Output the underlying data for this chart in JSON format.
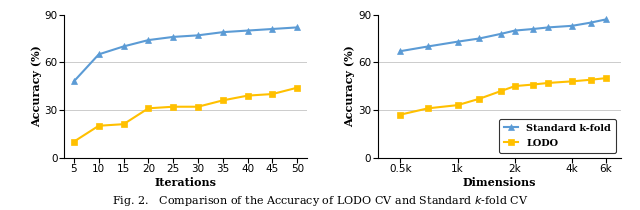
{
  "left": {
    "xlabel": "Iterations",
    "ylabel": "Accuracy (%)",
    "ylim": [
      0,
      90
    ],
    "yticks": [
      0,
      30,
      60,
      90
    ],
    "xticks": [
      5,
      10,
      15,
      20,
      25,
      30,
      35,
      40,
      45,
      50
    ],
    "xlim": [
      3,
      52
    ],
    "standard_x": [
      5,
      10,
      15,
      20,
      25,
      30,
      35,
      40,
      45,
      50
    ],
    "standard_y": [
      48,
      65,
      70,
      74,
      76,
      77,
      79,
      80,
      81,
      82
    ],
    "lodo_x": [
      5,
      10,
      15,
      20,
      25,
      30,
      35,
      40,
      45,
      50
    ],
    "lodo_y": [
      10,
      20,
      21,
      31,
      32,
      32,
      36,
      39,
      40,
      44
    ]
  },
  "right": {
    "xlabel": "Dimensions",
    "ylabel": "Accuracy (%)",
    "ylim": [
      0,
      90
    ],
    "yticks": [
      0,
      30,
      60,
      90
    ],
    "xtick_labels": [
      "0.5k",
      "1k",
      "2k",
      "4k",
      "6k"
    ],
    "xtick_positions": [
      500,
      1000,
      2000,
      4000,
      6000
    ],
    "xlim": [
      380,
      7200
    ],
    "standard_x": [
      500,
      700,
      1000,
      1300,
      1700,
      2000,
      2500,
      3000,
      4000,
      5000,
      6000
    ],
    "standard_y": [
      67,
      70,
      73,
      75,
      78,
      80,
      81,
      82,
      83,
      85,
      87
    ],
    "lodo_x": [
      500,
      700,
      1000,
      1300,
      1700,
      2000,
      2500,
      3000,
      4000,
      5000,
      6000
    ],
    "lodo_y": [
      27,
      31,
      33,
      37,
      42,
      45,
      46,
      47,
      48,
      49,
      50
    ]
  },
  "standard_color": "#5B9BD5",
  "lodo_color": "#FFC000",
  "standard_label": "Standard k-fold",
  "lodo_label": "LODO",
  "caption": "Fig. 2.   Comparison of the Accuracy of LODO CV and Standard $k$-fold CV",
  "grid_color": "#CCCCCC"
}
